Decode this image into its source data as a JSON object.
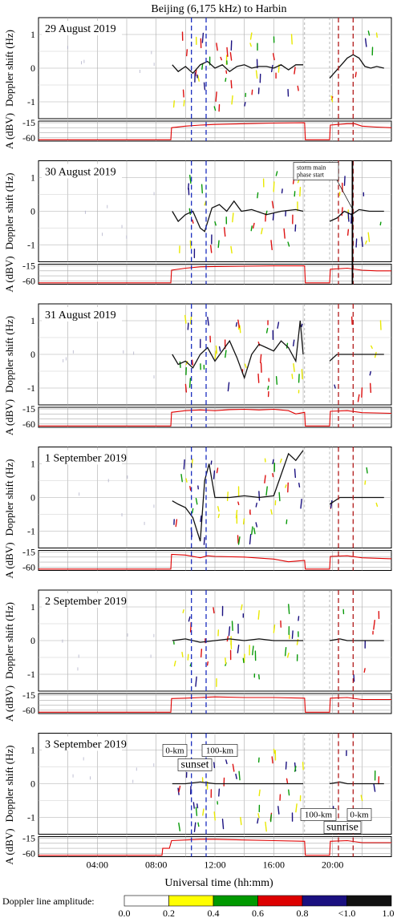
{
  "chart_data": {
    "type": "line",
    "title": "Beijing (6,175 kHz) to Harbin",
    "xlabel": "Universal time (hh:mm)",
    "ylabel_doppler": "Doppler shift (Hz)",
    "ylabel_amplitude": "A (dBV)",
    "x_range_hours": [
      0,
      24
    ],
    "x_ticks": [
      "04:00",
      "08:00",
      "12:00",
      "16:00",
      "20:00"
    ],
    "doppler_ylim": [
      -1.5,
      1.5
    ],
    "doppler_ticks": [
      "1",
      "0",
      "-1"
    ],
    "amplitude_ticks": [
      "-15",
      "-60"
    ],
    "grid": true,
    "sunset_lines_hours": [
      10.4,
      11.4
    ],
    "sunset_color": "#1a2dbf",
    "sunrise_lines_hours": [
      20.4,
      21.4
    ],
    "sunrise_color": "#b21a1a",
    "annotations": {
      "sunset": "sunset",
      "sunrise": "sunrise",
      "km0": "0-km",
      "km100": "100-km",
      "storm_line1": "storm main",
      "storm_line2": "phase start"
    },
    "colorbar": {
      "label": "Doppler line amplitude:",
      "ticks": [
        "0.0",
        "0.2",
        "0.4",
        "0.6",
        "0.8",
        "<1.0",
        "1.0"
      ],
      "colors": [
        "#ffffff",
        "#ffff00",
        "#009900",
        "#dd0000",
        "#1a1080",
        "#111111"
      ]
    },
    "panels": [
      {
        "date": "29 August 2019",
        "doppler": [
          [
            9.1,
            0.1
          ],
          [
            9.5,
            -0.1
          ],
          [
            10.0,
            0.05
          ],
          [
            10.5,
            -0.15
          ],
          [
            11.0,
            0.1
          ],
          [
            11.5,
            0.2
          ],
          [
            12.0,
            0.0
          ],
          [
            12.5,
            0.1
          ],
          [
            13.0,
            -0.1
          ],
          [
            13.5,
            0.05
          ],
          [
            14.0,
            0.1
          ],
          [
            14.5,
            0.0
          ],
          [
            15.0,
            0.05
          ],
          [
            15.5,
            0.05
          ],
          [
            16.0,
            0.0
          ],
          [
            16.5,
            0.1
          ],
          [
            17.0,
            -0.05
          ],
          [
            17.5,
            0.1
          ],
          [
            18.0,
            0.1
          ],
          [
            19.8,
            -0.3
          ],
          [
            20.2,
            -0.1
          ],
          [
            20.6,
            0.1
          ],
          [
            21.0,
            0.3
          ],
          [
            21.4,
            0.4
          ],
          [
            21.8,
            0.3
          ],
          [
            22.2,
            0.05
          ],
          [
            22.6,
            0.0
          ],
          [
            23.0,
            0.05
          ],
          [
            23.5,
            0.0
          ]
        ],
        "amplitude": [
          [
            0,
            -66
          ],
          [
            9.0,
            -66
          ],
          [
            9.05,
            -30
          ],
          [
            10.0,
            -25
          ],
          [
            11.0,
            -22
          ],
          [
            12.0,
            -20
          ],
          [
            14.0,
            -18
          ],
          [
            16.0,
            -16
          ],
          [
            18.1,
            -15
          ],
          [
            18.15,
            -66
          ],
          [
            19.8,
            -66
          ],
          [
            19.85,
            -22
          ],
          [
            21.0,
            -18
          ],
          [
            21.5,
            -18
          ],
          [
            22.0,
            -25
          ],
          [
            23.0,
            -28
          ],
          [
            24.0,
            -30
          ]
        ]
      },
      {
        "date": "30 August 2019",
        "doppler": [
          [
            9.1,
            0.0
          ],
          [
            9.5,
            -0.3
          ],
          [
            10.0,
            -0.1
          ],
          [
            10.5,
            0.0
          ],
          [
            11.0,
            -0.5
          ],
          [
            11.3,
            -0.6
          ],
          [
            11.8,
            0.1
          ],
          [
            12.3,
            0.2
          ],
          [
            12.8,
            0.0
          ],
          [
            13.3,
            0.3
          ],
          [
            13.8,
            0.0
          ],
          [
            14.5,
            0.05
          ],
          [
            15.5,
            -0.1
          ],
          [
            16.5,
            0.0
          ],
          [
            17.5,
            0.05
          ],
          [
            18.0,
            0.0
          ],
          [
            19.8,
            -0.3
          ],
          [
            20.3,
            -0.2
          ],
          [
            20.8,
            0.0
          ],
          [
            21.3,
            -0.1
          ],
          [
            21.8,
            0.05
          ],
          [
            22.5,
            0.0
          ],
          [
            23.5,
            0.0
          ]
        ],
        "amplitude": [
          [
            0,
            -66
          ],
          [
            9.0,
            -66
          ],
          [
            9.05,
            -28
          ],
          [
            10.0,
            -22
          ],
          [
            11.0,
            -18
          ],
          [
            12.0,
            -17
          ],
          [
            14.0,
            -16
          ],
          [
            16.0,
            -15
          ],
          [
            18.1,
            -15
          ],
          [
            18.15,
            -66
          ],
          [
            19.8,
            -66
          ],
          [
            19.85,
            -25
          ],
          [
            21.0,
            -22
          ],
          [
            22.0,
            -28
          ],
          [
            23.0,
            -30
          ],
          [
            24.0,
            -30
          ]
        ]
      },
      {
        "date": "31 August 2019",
        "doppler": [
          [
            9.1,
            0.0
          ],
          [
            9.5,
            -0.3
          ],
          [
            10.0,
            -0.2
          ],
          [
            10.5,
            -0.4
          ],
          [
            11.0,
            0.0
          ],
          [
            11.5,
            0.2
          ],
          [
            12.0,
            -0.2
          ],
          [
            12.5,
            0.1
          ],
          [
            13.0,
            0.4
          ],
          [
            13.5,
            -0.1
          ],
          [
            14.0,
            -0.7
          ],
          [
            14.5,
            0.0
          ],
          [
            15.0,
            0.3
          ],
          [
            15.5,
            0.2
          ],
          [
            16.0,
            0.1
          ],
          [
            16.5,
            0.4
          ],
          [
            17.0,
            0.2
          ],
          [
            17.5,
            -0.2
          ],
          [
            17.8,
            1.0
          ],
          [
            18.0,
            0.0
          ],
          [
            19.8,
            -0.2
          ],
          [
            20.3,
            0.0
          ],
          [
            21.0,
            0.0
          ],
          [
            22.0,
            0.0
          ],
          [
            23.5,
            0.0
          ]
        ],
        "amplitude": [
          [
            0,
            -66
          ],
          [
            9.0,
            -66
          ],
          [
            9.05,
            -25
          ],
          [
            10.0,
            -20
          ],
          [
            11.0,
            -18
          ],
          [
            12.0,
            -20
          ],
          [
            13.0,
            -17
          ],
          [
            14.0,
            -16
          ],
          [
            15.0,
            -18
          ],
          [
            16.0,
            -16
          ],
          [
            17.0,
            -20
          ],
          [
            17.5,
            -30
          ],
          [
            18.1,
            -25
          ],
          [
            18.15,
            -66
          ],
          [
            19.8,
            -66
          ],
          [
            19.85,
            -22
          ],
          [
            21.0,
            -20
          ],
          [
            22.0,
            -26
          ],
          [
            24.0,
            -28
          ]
        ]
      },
      {
        "date": "1 September 2019",
        "doppler": [
          [
            9.1,
            -0.1
          ],
          [
            9.5,
            -0.2
          ],
          [
            10.0,
            -0.3
          ],
          [
            10.5,
            -0.6
          ],
          [
            11.0,
            -1.3
          ],
          [
            11.3,
            0.5
          ],
          [
            11.6,
            1.0
          ],
          [
            12.0,
            0.0
          ],
          [
            13.0,
            0.0
          ],
          [
            14.0,
            0.05
          ],
          [
            15.0,
            0.0
          ],
          [
            16.0,
            0.05
          ],
          [
            17.0,
            1.3
          ],
          [
            17.5,
            1.1
          ],
          [
            18.0,
            1.4
          ],
          [
            19.8,
            -0.2
          ],
          [
            20.5,
            0.0
          ],
          [
            21.0,
            0.0
          ],
          [
            22.0,
            0.0
          ],
          [
            23.5,
            0.0
          ]
        ],
        "amplitude": [
          [
            0,
            -66
          ],
          [
            9.0,
            -66
          ],
          [
            9.05,
            -22
          ],
          [
            10.0,
            -24
          ],
          [
            11.0,
            -32
          ],
          [
            11.5,
            -26
          ],
          [
            12.0,
            -28
          ],
          [
            14.0,
            -30
          ],
          [
            16.0,
            -36
          ],
          [
            17.0,
            -44
          ],
          [
            18.1,
            -40
          ],
          [
            18.15,
            -66
          ],
          [
            19.8,
            -66
          ],
          [
            19.85,
            -28
          ],
          [
            21.0,
            -26
          ],
          [
            22.0,
            -32
          ],
          [
            24.0,
            -35
          ]
        ]
      },
      {
        "date": "2 September 2019",
        "doppler": [
          [
            9.1,
            0.0
          ],
          [
            10.0,
            0.05
          ],
          [
            11.0,
            -0.05
          ],
          [
            12.0,
            0.0
          ],
          [
            13.0,
            0.05
          ],
          [
            14.0,
            0.0
          ],
          [
            15.0,
            0.05
          ],
          [
            16.0,
            0.0
          ],
          [
            17.0,
            0.0
          ],
          [
            18.0,
            0.0
          ],
          [
            19.8,
            0.0
          ],
          [
            20.5,
            0.05
          ],
          [
            21.0,
            0.0
          ],
          [
            22.0,
            0.0
          ],
          [
            23.5,
            0.0
          ]
        ],
        "amplitude": [
          [
            0,
            -66
          ],
          [
            9.0,
            -66
          ],
          [
            9.05,
            -25
          ],
          [
            10.0,
            -24
          ],
          [
            11.0,
            -22
          ],
          [
            12.0,
            -20
          ],
          [
            14.0,
            -22
          ],
          [
            16.0,
            -22
          ],
          [
            18.1,
            -24
          ],
          [
            18.15,
            -66
          ],
          [
            19.8,
            -66
          ],
          [
            19.85,
            -24
          ],
          [
            21.0,
            -22
          ],
          [
            22.0,
            -28
          ],
          [
            24.0,
            -28
          ]
        ]
      },
      {
        "date": "3 September 2019",
        "doppler": [
          [
            9.1,
            0.0
          ],
          [
            10.0,
            0.0
          ],
          [
            11.0,
            0.05
          ],
          [
            12.0,
            0.0
          ],
          [
            13.0,
            0.0
          ],
          [
            14.0,
            0.0
          ],
          [
            15.0,
            0.0
          ],
          [
            16.0,
            0.0
          ],
          [
            17.0,
            0.0
          ],
          [
            18.0,
            0.0
          ],
          [
            19.8,
            0.0
          ],
          [
            20.5,
            0.05
          ],
          [
            21.0,
            0.0
          ],
          [
            22.0,
            0.0
          ],
          [
            23.5,
            0.0
          ]
        ],
        "amplitude": [
          [
            0,
            -66
          ],
          [
            8.4,
            -66
          ],
          [
            8.45,
            -45
          ],
          [
            8.9,
            -45
          ],
          [
            9.05,
            -22
          ],
          [
            10.0,
            -20
          ],
          [
            11.0,
            -18
          ],
          [
            12.0,
            -18
          ],
          [
            14.0,
            -20
          ],
          [
            16.0,
            -22
          ],
          [
            18.1,
            -24
          ],
          [
            18.15,
            -66
          ],
          [
            19.8,
            -66
          ],
          [
            19.85,
            -24
          ],
          [
            21.0,
            -22
          ],
          [
            22.0,
            -28
          ],
          [
            24.0,
            -28
          ]
        ]
      }
    ]
  }
}
